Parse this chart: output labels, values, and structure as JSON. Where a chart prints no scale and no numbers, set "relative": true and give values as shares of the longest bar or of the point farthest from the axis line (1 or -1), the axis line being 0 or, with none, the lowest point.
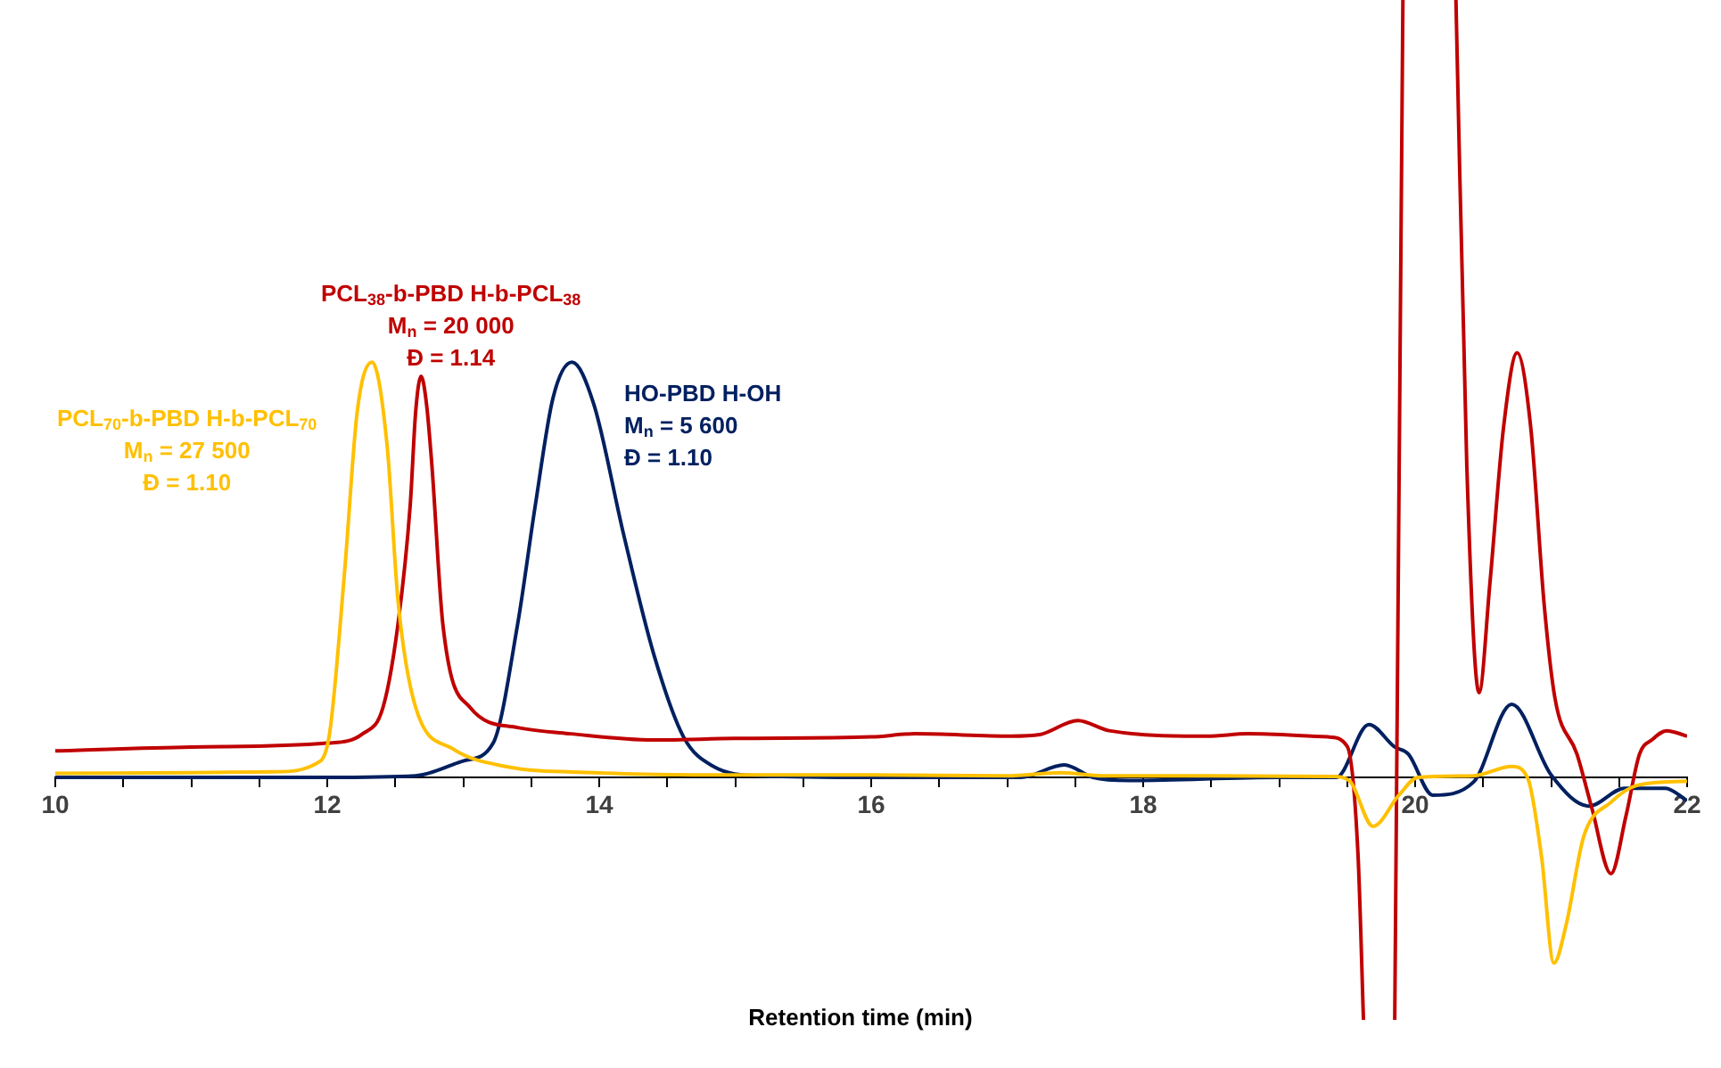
{
  "chart_data": {
    "type": "line",
    "xlabel": "Retention time (min)",
    "relative": true,
    "grid": false,
    "legend": false,
    "marker": "none",
    "line_style": "solid",
    "tick_labels": "x",
    "xlim": [
      10,
      22
    ],
    "xticks": [
      10,
      {
        "value": 10.5,
        "label": null
      },
      {
        "value": 11,
        "label": null
      },
      {
        "value": 11.5,
        "label": null
      },
      12,
      {
        "value": 12.5,
        "label": null
      },
      {
        "value": 13,
        "label": null
      },
      {
        "value": 13.5,
        "label": null
      },
      14,
      {
        "value": 14.5,
        "label": null
      },
      {
        "value": 15,
        "label": null
      },
      {
        "value": 15.5,
        "label": null
      },
      16,
      {
        "value": 16.5,
        "label": null
      },
      {
        "value": 17,
        "label": null
      },
      {
        "value": 17.5,
        "label": null
      },
      18,
      {
        "value": 18.5,
        "label": null
      },
      {
        "value": 19,
        "label": null
      },
      {
        "value": 19.5,
        "label": null
      },
      20,
      {
        "value": 20.5,
        "label": null
      },
      {
        "value": 21,
        "label": null
      },
      {
        "value": 21.5,
        "label": null
      },
      22
    ],
    "annotations": [
      "M$_{n}$ = 27 500",
      "Đ = 1.10",
      "M$_{n}$ = 20 000",
      "Đ = 1.14",
      "M$_{n}$ = 5 600",
      "Đ = 1.10"
    ],
    "series": [
      {
        "name": "PCL$_{70}$-b-PBD H-b-PCL$_{70}$",
        "color": "#ffc000",
        "x": [
          10,
          11,
          11.6,
          11.95,
          12.02,
          12.13,
          12.22,
          12.33,
          12.44,
          12.52,
          12.65,
          12.92,
          13.31,
          13.97,
          15,
          16,
          17,
          17.4,
          17.7,
          18.5,
          19.4,
          19.52,
          19.69,
          19.88,
          20.02,
          20.43,
          20.71,
          20.83,
          20.93,
          21.02,
          21.11,
          21.24,
          21.44,
          21.64,
          22
        ],
        "values": [
          0.005,
          0.006,
          0.007,
          0.021,
          0.06,
          0.27,
          0.47,
          0.534,
          0.427,
          0.228,
          0.09,
          0.037,
          0.014,
          0.006,
          0.003,
          0.003,
          0.002,
          0.006,
          0.002,
          0.002,
          0.001,
          -0.005,
          -0.063,
          -0.023,
          0.0,
          0.002,
          0.014,
          -0.002,
          -0.103,
          -0.239,
          -0.19,
          -0.076,
          -0.032,
          -0.01,
          -0.005
        ]
      },
      {
        "name": "PCL$_{38}$-b-PBD H-b-PCL$_{38}$",
        "color": "#c00000",
        "x": [
          10,
          11,
          12,
          12.26,
          12.41,
          12.52,
          12.61,
          12.65,
          12.69,
          12.73,
          12.77,
          12.85,
          13.05,
          13.4,
          13.79,
          14.4,
          15,
          16,
          16.32,
          17.03,
          17.24,
          17.52,
          17.75,
          18.47,
          18.77,
          19.36,
          19.5,
          19.58,
          19.62,
          19.73,
          19.85,
          19.91,
          20.1,
          20.3,
          20.38,
          20.47,
          20.55,
          20.65,
          20.75,
          20.85,
          20.95,
          21.03,
          21.19,
          21.3,
          21.44,
          21.55,
          21.65,
          21.74,
          21.85,
          22
        ],
        "values": [
          0.034,
          0.039,
          0.044,
          0.056,
          0.09,
          0.197,
          0.35,
          0.47,
          0.516,
          0.48,
          0.4,
          0.197,
          0.09,
          0.064,
          0.056,
          0.048,
          0.05,
          0.052,
          0.056,
          0.053,
          0.055,
          0.073,
          0.06,
          0.053,
          0.056,
          0.052,
          0.04,
          -0.1,
          -0.312,
          null,
          -0.312,
          1,
          null,
          1,
          0.4,
          0.109,
          0.25,
          0.45,
          0.546,
          0.45,
          0.22,
          0.1,
          0.03,
          -0.04,
          -0.124,
          -0.05,
          0.03,
          0.048,
          0.06,
          0.053
        ]
      },
      {
        "name": "HO-PBD H-OH",
        "color": "#002060",
        "x": [
          10,
          12,
          12.65,
          13.0,
          13.22,
          13.4,
          13.53,
          13.66,
          13.8,
          13.96,
          14.18,
          14.4,
          14.62,
          14.84,
          15.19,
          16,
          17.1,
          17.42,
          17.63,
          17.9,
          19,
          19.42,
          19.66,
          19.85,
          19.95,
          20.13,
          20.43,
          20.71,
          21.0,
          21.28,
          21.54,
          21.84,
          22
        ],
        "values": [
          0,
          0,
          0.002,
          0.021,
          0.044,
          0.197,
          0.35,
          0.488,
          0.534,
          0.48,
          0.312,
          0.159,
          0.052,
          0.014,
          0.002,
          0,
          0,
          0.016,
          0,
          -0.004,
          0,
          0,
          0.068,
          0.039,
          0.03,
          -0.023,
          -0.006,
          0.094,
          0.003,
          -0.037,
          -0.014,
          -0.014,
          -0.03
        ]
      }
    ]
  }
}
